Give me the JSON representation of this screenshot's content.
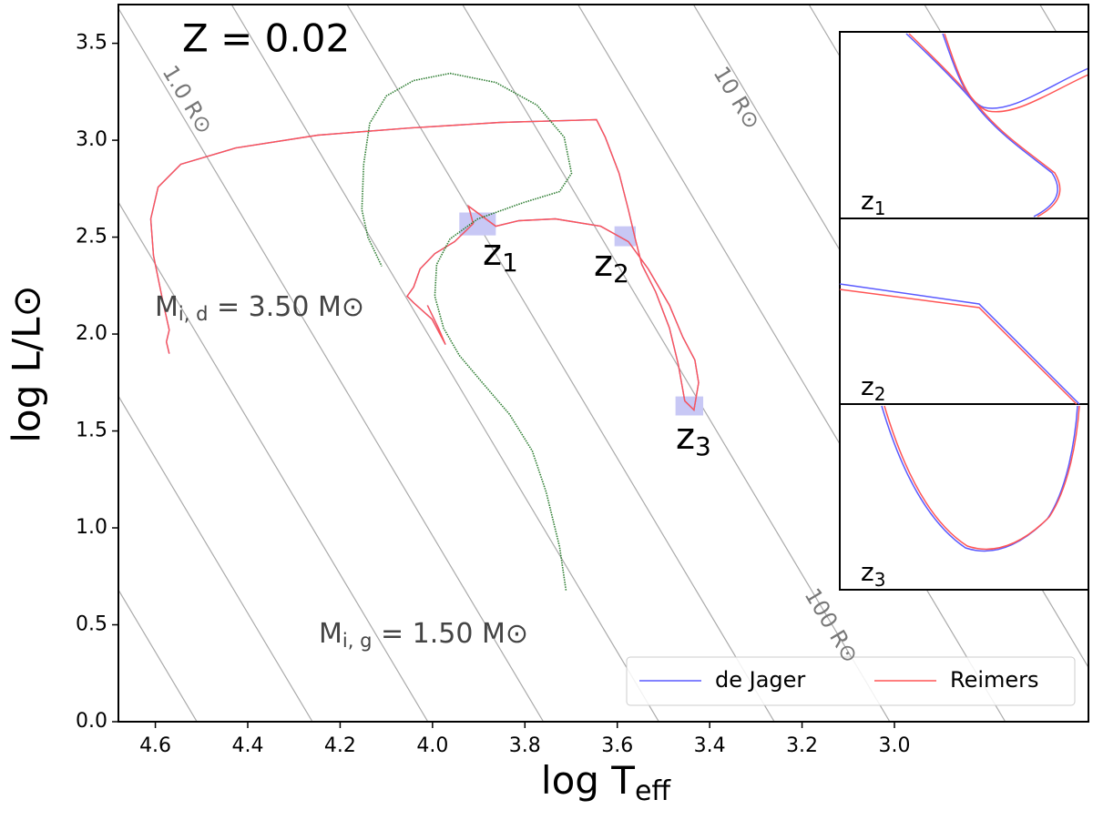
{
  "chart_data": {
    "type": "line",
    "title": "Z = 0.02",
    "x_label": {
      "main": "log T",
      "sub": "eff"
    },
    "y_label": "log L/L⊙",
    "xlim": [
      4.68,
      2.58
    ],
    "ylim": [
      0,
      3.7
    ],
    "xticks": [
      4.6,
      4.4,
      4.2,
      {
        "value": 4,
        "label": "4.0"
      },
      3.8,
      3.6,
      3.4,
      3.2,
      {
        "value": 3,
        "label": "3.0"
      }
    ],
    "yticks": [
      {
        "value": 0,
        "label": "0.0"
      },
      0.5,
      {
        "value": 1,
        "label": "1.0"
      },
      1.5,
      {
        "value": 2,
        "label": "2.0"
      },
      2.5,
      {
        "value": 3,
        "label": "3.0"
      },
      3.5
    ],
    "legend": "lower right",
    "series": [
      {
        "name": "de Jager",
        "color": "#5a5aff",
        "x": [
          4.57,
          4.576,
          4.57,
          4.584,
          4.604,
          4.61,
          4.594,
          4.545,
          4.426,
          4.248,
          4.051,
          3.853,
          3.645,
          3.626,
          3.596,
          3.576,
          3.562,
          3.547,
          3.517,
          3.487,
          3.468,
          3.454,
          3.434,
          3.424,
          3.432,
          3.458,
          3.487,
          3.533,
          3.576,
          3.636,
          3.734,
          3.813,
          3.863,
          3.922,
          3.912,
          3.952,
          3.995,
          4.027,
          4.041,
          4.055,
          4.041,
          4.001,
          3.972,
          3.987,
          4.011
        ],
        "y": [
          1.899,
          1.96,
          2.021,
          2.171,
          2.406,
          2.594,
          2.758,
          2.876,
          2.96,
          3.026,
          3.063,
          3.092,
          3.106,
          3.016,
          2.829,
          2.641,
          2.5,
          2.359,
          2.218,
          2.031,
          1.843,
          1.655,
          1.608,
          1.749,
          1.866,
          1.984,
          2.148,
          2.336,
          2.477,
          2.556,
          2.594,
          2.585,
          2.556,
          2.66,
          2.57,
          2.477,
          2.415,
          2.336,
          2.242,
          2.195,
          2.162,
          2.077,
          1.946,
          2.031,
          2.148
        ]
      },
      {
        "name": "Reimers",
        "color": "#ff5555",
        "x": [
          4.57,
          4.576,
          4.57,
          4.584,
          4.604,
          4.61,
          4.594,
          4.545,
          4.426,
          4.248,
          4.051,
          3.853,
          3.645,
          3.626,
          3.596,
          3.576,
          3.562,
          3.547,
          3.517,
          3.487,
          3.468,
          3.454,
          3.434,
          3.424,
          3.432,
          3.458,
          3.487,
          3.533,
          3.576,
          3.636,
          3.734,
          3.813,
          3.863,
          3.922,
          3.912,
          3.952,
          3.995,
          4.027,
          4.041,
          4.055,
          4.041,
          4.001,
          3.972,
          3.987,
          4.011
        ],
        "y": [
          1.899,
          1.96,
          2.021,
          2.171,
          2.406,
          2.594,
          2.758,
          2.876,
          2.96,
          3.026,
          3.063,
          3.092,
          3.106,
          3.016,
          2.829,
          2.641,
          2.5,
          2.359,
          2.218,
          2.031,
          1.843,
          1.655,
          1.608,
          1.749,
          1.866,
          1.984,
          2.148,
          2.336,
          2.477,
          2.556,
          2.594,
          2.585,
          2.556,
          2.66,
          2.57,
          2.477,
          2.415,
          2.336,
          2.242,
          2.195,
          2.162,
          2.077,
          1.946,
          2.031,
          2.148
        ]
      },
      {
        "color": "#2e7d32",
        "style": "dotted",
        "x": [
          3.711,
          3.725,
          3.754,
          3.784,
          3.833,
          3.892,
          3.942,
          3.976,
          3.995,
          3.991,
          3.962,
          3.902,
          3.804,
          3.725,
          3.699,
          3.715,
          3.774,
          3.863,
          3.962,
          4.041,
          4.1,
          4.136,
          4.149,
          4.153,
          4.14,
          4.11
        ],
        "y": [
          0.678,
          0.904,
          1.185,
          1.397,
          1.585,
          1.749,
          1.89,
          2.031,
          2.195,
          2.359,
          2.491,
          2.594,
          2.678,
          2.735,
          2.829,
          3.016,
          3.181,
          3.298,
          3.345,
          3.308,
          3.228,
          3.087,
          2.876,
          2.641,
          2.5,
          2.35
        ]
      }
    ],
    "isoradius_lines": {
      "color": "#aaaaaa",
      "slope": 4,
      "x_at_y0": [
        4.76,
        4.51,
        4.26,
        4.01,
        3.76,
        3.51,
        3.26,
        3.01,
        2.76,
        2.51,
        2.26,
        2.01,
        1.76
      ]
    },
    "radius_labels": [
      "1.0 R⊙",
      "10 R⊙",
      "100 R⊙"
    ],
    "mass_labels": [
      {
        "main": "M",
        "sub": "i, d",
        "rest": " = 3.50 M⊙"
      },
      {
        "main": "M",
        "sub": "i, g",
        "rest": " = 1.50 M⊙"
      }
    ],
    "zoom_regions": [
      {
        "main": "z",
        "sub": "1",
        "color": "#c8c8f5",
        "x": [
          3.942,
          3.863
        ],
        "y": [
          2.509,
          2.627
        ]
      },
      {
        "main": "z",
        "sub": "2",
        "color": "#c8c8f5",
        "x": [
          3.606,
          3.56
        ],
        "y": [
          2.453,
          2.556
        ]
      },
      {
        "main": "z",
        "sub": "3",
        "color": "#c8c8f5",
        "x": [
          3.474,
          3.414
        ],
        "y": [
          1.58,
          1.678
        ]
      }
    ]
  }
}
